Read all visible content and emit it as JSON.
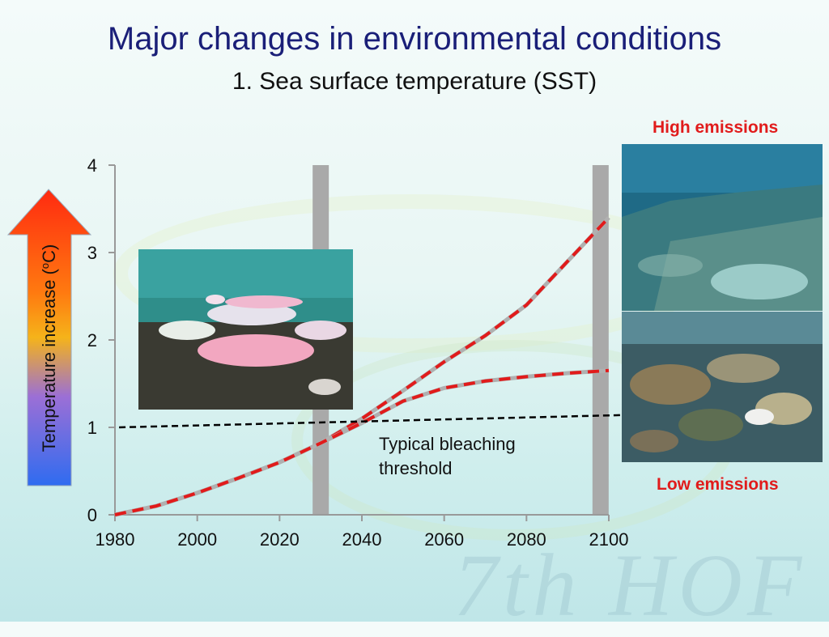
{
  "title": "Major changes in environmental conditions",
  "subtitle": "1. Sea surface temperature (SST)",
  "labels": {
    "high_emissions": "High emissions",
    "low_emissions": "Low emissions",
    "watermark": "7th HOF"
  },
  "colors": {
    "title": "#1a1f78",
    "emissions_label": "#e11b1b",
    "projection_line": "#e11b1b",
    "threshold_line": "#000000",
    "marker_bars": "#a9a9a9"
  },
  "chart_data": {
    "type": "line",
    "ylabel": "Temperature increase (oC)",
    "ylabel_main": "Temperature increase (",
    "ylabel_sup": "o",
    "ylabel_end": "C)",
    "xlim": [
      1980,
      2100
    ],
    "ylim": [
      0,
      4
    ],
    "x_ticks": [
      1980,
      2000,
      2020,
      2040,
      2060,
      2080,
      2100
    ],
    "y_ticks": [
      0,
      1,
      2,
      3,
      4
    ],
    "vertical_markers": [
      2030,
      2098
    ],
    "annotations": [
      "Typical bleaching",
      "threshold"
    ],
    "series": [
      {
        "name": "High emissions",
        "x": [
          1980,
          1990,
          2000,
          2010,
          2020,
          2030,
          2040,
          2050,
          2060,
          2070,
          2080,
          2090,
          2100
        ],
        "y": [
          0.0,
          0.1,
          0.25,
          0.42,
          0.6,
          0.82,
          1.1,
          1.42,
          1.75,
          2.05,
          2.4,
          2.9,
          3.4
        ],
        "style": "dashed"
      },
      {
        "name": "Low emissions",
        "x": [
          1980,
          1990,
          2000,
          2010,
          2020,
          2030,
          2040,
          2050,
          2060,
          2070,
          2080,
          2090,
          2100
        ],
        "y": [
          0.0,
          0.1,
          0.25,
          0.42,
          0.6,
          0.82,
          1.05,
          1.3,
          1.45,
          1.53,
          1.58,
          1.62,
          1.65
        ],
        "style": "dashed"
      },
      {
        "name": "Typical bleaching threshold",
        "x": [
          1981,
          2103
        ],
        "y": [
          1.0,
          1.14
        ],
        "style": "dashed"
      }
    ]
  }
}
